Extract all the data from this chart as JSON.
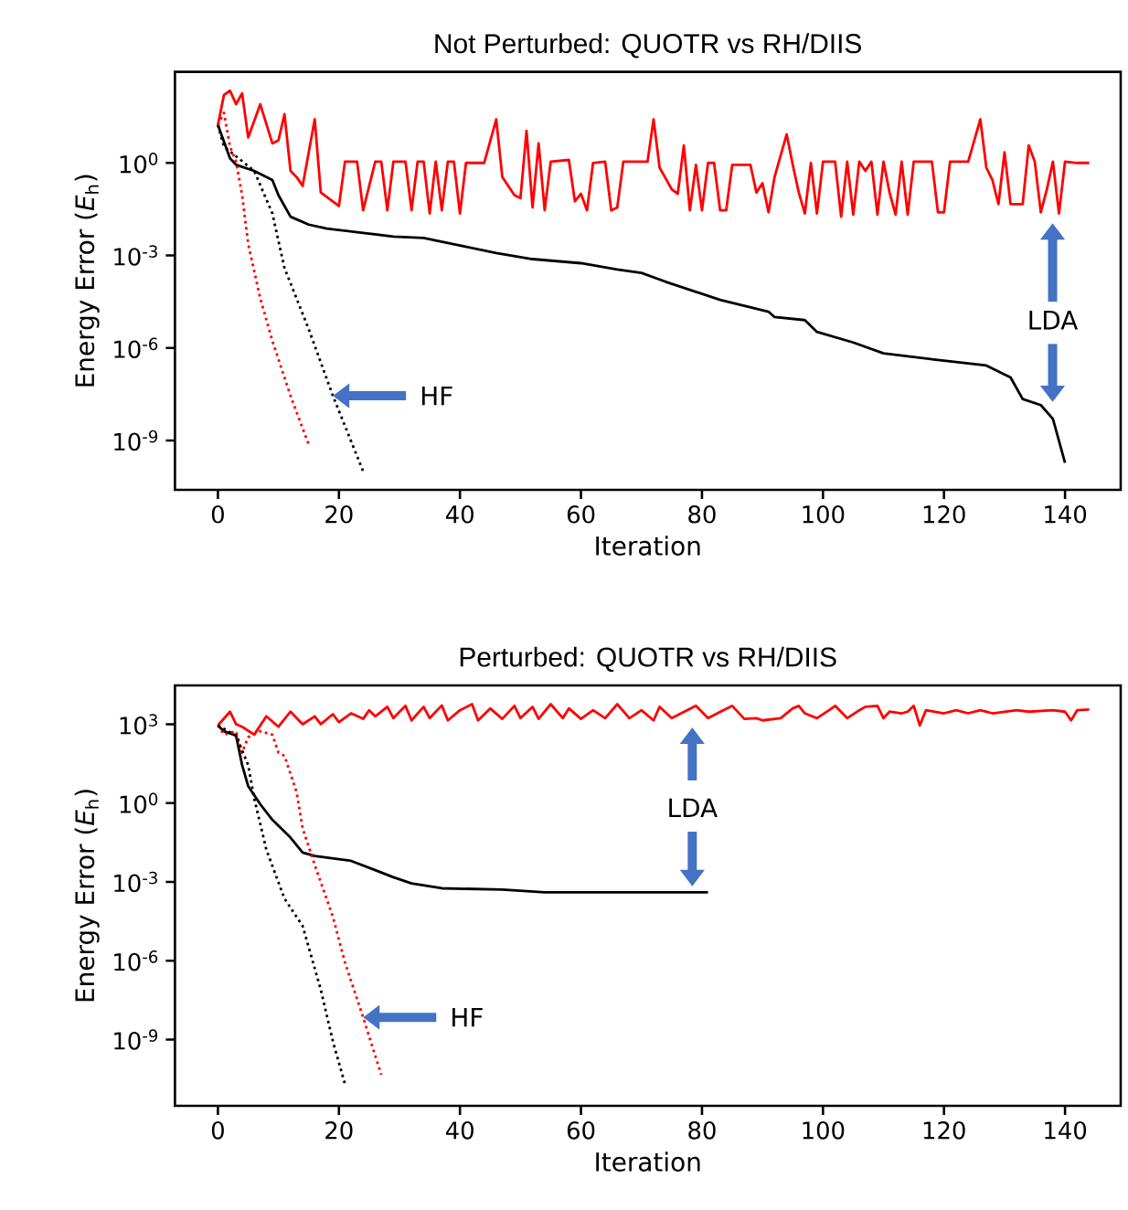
{
  "chart_data": [
    {
      "type": "line",
      "title": "Not Perturbed: QUOTR vs RH/DIIS",
      "xlabel": "Iteration",
      "ylabel": "Energy Error (*E*$_{h}$)",
      "log": "y",
      "xlim": [
        -7.1,
        149.2
      ],
      "ylim": [
        2.5e-11,
        900
      ],
      "xticks": [
        0,
        20,
        40,
        60,
        80,
        100,
        120,
        140
      ],
      "yticks": [
        {
          "value": 1e-09,
          "label": "10$^{-9}$"
        },
        {
          "value": 1e-06,
          "label": "10$^{-6}$"
        },
        {
          "value": 0.001,
          "label": "10$^{-3}$"
        },
        {
          "value": 1,
          "label": "10$^{0}$"
        }
      ],
      "annotations": [
        {
          "text": "HF",
          "x": 19,
          "y": 2.8e-08
        },
        "LDA"
      ],
      "series": [
        {
          "type": "line",
          "color": "#ff0000",
          "line_style": "solid",
          "x": [
            0,
            1,
            2,
            3,
            4,
            5,
            7,
            9,
            10,
            11,
            12,
            13,
            14,
            16,
            17,
            20,
            21,
            23,
            24,
            26,
            27,
            28,
            29,
            31,
            32,
            33,
            34,
            35,
            36,
            37,
            38,
            39,
            40,
            41,
            44,
            46,
            47,
            49,
            50,
            51,
            52,
            53,
            54,
            55,
            58,
            59,
            60,
            61,
            62,
            64,
            65,
            66,
            67,
            71,
            72,
            73,
            75,
            76,
            77,
            78,
            79,
            80,
            81,
            82,
            83,
            84,
            85,
            88,
            89,
            90,
            91,
            92,
            94,
            95,
            96,
            97,
            98,
            99,
            100,
            102,
            103,
            104,
            105,
            106,
            107,
            108,
            109,
            110,
            111,
            112,
            113,
            114,
            115,
            118,
            119,
            120,
            121,
            124,
            126,
            127,
            128,
            129,
            130,
            131,
            133,
            134,
            135,
            136,
            137,
            138,
            139,
            140,
            142,
            144
          ],
          "values": [
            17,
            160,
            220,
            80,
            180,
            6.7,
            80,
            4.3,
            5.4,
            38,
            0.55,
            0.35,
            0.18,
            26,
            0.11,
            0.04,
            1.1,
            1.1,
            0.029,
            1.1,
            1.1,
            0.029,
            1.1,
            1.1,
            0.029,
            1.1,
            1.1,
            0.023,
            1.1,
            0.029,
            1.1,
            1.1,
            0.023,
            1.0,
            1.0,
            26,
            0.35,
            0.09,
            0.072,
            11,
            0.036,
            4.3,
            0.029,
            1.1,
            1.25,
            0.057,
            0.1,
            0.029,
            1.0,
            1.1,
            0.029,
            0.036,
            1.1,
            1.1,
            26,
            0.7,
            0.14,
            0.1,
            3.7,
            0.029,
            0.87,
            0.029,
            1.0,
            1.0,
            0.029,
            0.029,
            0.87,
            0.87,
            0.11,
            0.22,
            0.025,
            0.35,
            8.5,
            0.87,
            0.11,
            0.023,
            1.0,
            0.023,
            1.1,
            1.1,
            0.018,
            1.1,
            0.021,
            1.1,
            0.55,
            1.1,
            0.021,
            1.1,
            0.11,
            0.021,
            1.1,
            0.021,
            1.1,
            1.1,
            0.025,
            0.025,
            1.1,
            1.1,
            26,
            0.7,
            0.28,
            0.046,
            2.2,
            0.046,
            0.046,
            3.7,
            1.1,
            0.025,
            0.14,
            1.1,
            0.023,
            1.1,
            1.0,
            1.0
          ]
        },
        {
          "type": "line",
          "color": "#000000",
          "line_style": "solid",
          "x": [
            0,
            2,
            3,
            6,
            9,
            10,
            12,
            15,
            18,
            24,
            29,
            34,
            40,
            46,
            52,
            60,
            66,
            70,
            74,
            83,
            91,
            92,
            97,
            99,
            105,
            110,
            118,
            127,
            131,
            133,
            136,
            138,
            140
          ],
          "values": [
            17,
            1.4,
            0.87,
            0.55,
            0.28,
            0.09,
            0.018,
            0.01,
            0.0074,
            0.0054,
            0.0041,
            0.0037,
            0.0021,
            0.0012,
            0.00076,
            0.00056,
            0.00035,
            0.00027,
            0.00014,
            3.6e-05,
            1.5e-05,
            1e-05,
            8e-06,
            3.3e-06,
            1.5e-06,
            6.7e-07,
            4.3e-07,
            2.7e-07,
            1.1e-07,
            2.2e-08,
            1.4e-08,
            5e-09,
            1.9e-10
          ]
        },
        {
          "type": "line",
          "color": "#ff0000",
          "line_style": "dotted",
          "x": [
            0,
            1,
            2,
            3,
            4,
            5,
            7,
            9,
            12,
            15
          ],
          "values": [
            17,
            42,
            3.4,
            1.1,
            0.09,
            0.0024,
            4e-05,
            1.7e-06,
            2.8e-08,
            7.4e-10
          ]
        },
        {
          "type": "line",
          "color": "#000000",
          "line_style": "dotted",
          "x": [
            0,
            1,
            6,
            9,
            11,
            15,
            19,
            24
          ],
          "values": [
            17,
            3.4,
            0.55,
            0.023,
            0.00039,
            4.1e-06,
            2.8e-08,
            1e-10
          ]
        }
      ]
    },
    {
      "type": "line",
      "title": "Perturbed: QUOTR vs RH/DIIS",
      "xlabel": "Iteration",
      "ylabel": "Energy Error (*E*$_{h}$)",
      "log": "y",
      "xlim": [
        -7.1,
        149.2
      ],
      "ylim": [
        3e-12,
        30000
      ],
      "xticks": [
        0,
        20,
        40,
        60,
        80,
        100,
        120,
        140
      ],
      "yticks": [
        {
          "value": 1e-09,
          "label": "10$^{-9}$"
        },
        {
          "value": 1e-06,
          "label": "10$^{-6}$"
        },
        {
          "value": 0.001,
          "label": "10$^{-3}$"
        },
        {
          "value": 1,
          "label": "10$^{0}$"
        },
        {
          "value": 1000,
          "label": "10$^{3}$"
        }
      ],
      "annotations": [
        {
          "text": "HF",
          "x": 24,
          "y": 7e-09
        },
        "LDA"
      ],
      "series": [
        {
          "type": "line",
          "color": "#ff0000",
          "line_style": "solid",
          "x": [
            0,
            2,
            3,
            4,
            6,
            8,
            10,
            12,
            14,
            16,
            17,
            19,
            20,
            22,
            24,
            25,
            26,
            28,
            29,
            31,
            32,
            34,
            35,
            37,
            38,
            40,
            42,
            43,
            45,
            47,
            49,
            50,
            52,
            53,
            55,
            57,
            58,
            60,
            62,
            64,
            66,
            68,
            70,
            72,
            73,
            75,
            79,
            81,
            85,
            87,
            89,
            90,
            93,
            95,
            96,
            97,
            99,
            101,
            102,
            104,
            106,
            107,
            109,
            110,
            111,
            113,
            114,
            115,
            116,
            117,
            120,
            122,
            124,
            126,
            128,
            132,
            134,
            138,
            140,
            141,
            142,
            144
          ],
          "values": [
            900,
            3000,
            1000,
            800,
            400,
            2000,
            800,
            3000,
            1000,
            2000,
            1000,
            2400,
            1200,
            2600,
            1600,
            3400,
            2000,
            4600,
            1700,
            5000,
            1400,
            4600,
            1700,
            5200,
            1400,
            3400,
            5800,
            1400,
            4000,
            1600,
            5000,
            1700,
            4600,
            1600,
            5800,
            1700,
            4000,
            1600,
            3400,
            1700,
            5800,
            1700,
            3400,
            1400,
            4600,
            1700,
            5000,
            1700,
            5000,
            1600,
            1700,
            1400,
            1700,
            4000,
            5000,
            2600,
            1700,
            3400,
            5000,
            1700,
            3400,
            4600,
            5000,
            1700,
            3000,
            2600,
            3000,
            5000,
            900,
            3400,
            2600,
            3400,
            2600,
            3400,
            2600,
            3400,
            3000,
            3400,
            3000,
            1400,
            3400,
            3600
          ]
        },
        {
          "type": "line",
          "color": "#000000",
          "line_style": "solid",
          "x": [
            0,
            1,
            3,
            4,
            5,
            7,
            9,
            12,
            14,
            16,
            22,
            26,
            29,
            32,
            37,
            47,
            54,
            81
          ],
          "values": [
            900,
            540,
            370,
            28,
            4.4,
            0.9,
            0.23,
            0.048,
            0.013,
            0.0097,
            0.0063,
            0.0028,
            0.0015,
            0.00087,
            0.00057,
            0.00051,
            0.0004,
            0.0004
          ]
        },
        {
          "type": "line",
          "color": "#ff0000",
          "line_style": "dotted",
          "x": [
            0,
            1,
            3,
            4,
            5,
            7,
            9,
            10,
            11,
            13,
            14,
            16,
            19,
            21,
            24,
            27
          ],
          "values": [
            900,
            400,
            540,
            83,
            320,
            540,
            400,
            83,
            63,
            2.6,
            0.11,
            0.0044,
            4.7e-05,
            8.5e-07,
            7e-09,
            4.5e-11
          ]
        },
        {
          "type": "line",
          "color": "#000000",
          "line_style": "dotted",
          "x": [
            0,
            3,
            5,
            6,
            8,
            11,
            14,
            17,
            19,
            21
          ],
          "values": [
            900,
            370,
            28,
            1.5,
            0.017,
            0.00023,
            2.1e-05,
            7.9e-08,
            8.5e-10,
            2e-11
          ]
        }
      ]
    }
  ]
}
